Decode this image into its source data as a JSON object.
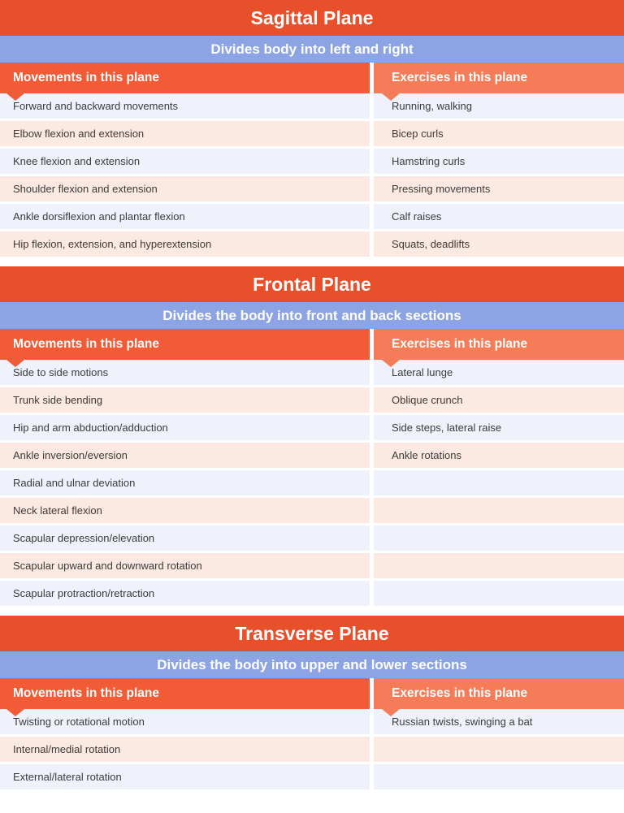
{
  "colors": {
    "title_bar": "#E8502B",
    "subtitle_bar": "#8CA4E4",
    "movements_header": "#F15B36",
    "exercises_header": "#F47C59",
    "row_even": "#EFF2FA",
    "row_odd": "#FCE9E1",
    "row_text": "#3B3B3B",
    "header_text": "#FFFFFF"
  },
  "column_headers": {
    "movements": "Movements in this plane",
    "exercises": "Exercises in this plane"
  },
  "sections": [
    {
      "title": "Sagittal Plane",
      "subtitle": "Divides body into left and right",
      "rows": [
        {
          "movement": "Forward and backward movements",
          "exercise": "Running, walking"
        },
        {
          "movement": "Elbow flexion and extension",
          "exercise": "Bicep curls"
        },
        {
          "movement": "Knee flexion and extension",
          "exercise": "Hamstring curls"
        },
        {
          "movement": "Shoulder flexion and extension",
          "exercise": "Pressing movements"
        },
        {
          "movement": "Ankle dorsiflexion and plantar flexion",
          "exercise": "Calf raises"
        },
        {
          "movement": "Hip flexion, extension, and hyperextension",
          "exercise": "Squats, deadlifts"
        }
      ]
    },
    {
      "title": "Frontal Plane",
      "subtitle": "Divides the body into front and back sections",
      "rows": [
        {
          "movement": "Side to side motions",
          "exercise": "Lateral lunge"
        },
        {
          "movement": "Trunk side bending",
          "exercise": "Oblique crunch"
        },
        {
          "movement": "Hip and arm abduction/adduction",
          "exercise": "Side steps, lateral raise"
        },
        {
          "movement": "Ankle inversion/eversion",
          "exercise": "Ankle rotations"
        },
        {
          "movement": "Radial and ulnar deviation",
          "exercise": ""
        },
        {
          "movement": "Neck lateral flexion",
          "exercise": ""
        },
        {
          "movement": "Scapular depression/elevation",
          "exercise": ""
        },
        {
          "movement": "Scapular upward and downward rotation",
          "exercise": ""
        },
        {
          "movement": "Scapular protraction/retraction",
          "exercise": ""
        }
      ]
    },
    {
      "title": "Transverse Plane",
      "subtitle": "Divides the body into upper and lower sections",
      "rows": [
        {
          "movement": "Twisting or rotational motion",
          "exercise": "Russian twists, swinging a bat"
        },
        {
          "movement": "Internal/medial rotation",
          "exercise": ""
        },
        {
          "movement": "External/lateral rotation",
          "exercise": ""
        }
      ]
    }
  ]
}
